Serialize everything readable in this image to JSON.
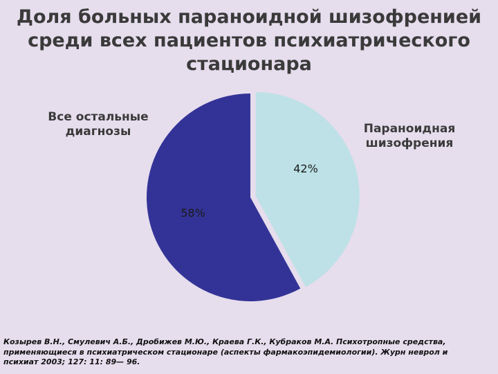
{
  "title_lines": [
    "Доля больных параноидной шизофренией",
    "среди всех пациентов психиатрического",
    "стационара"
  ],
  "chart_data": {
    "type": "pie",
    "title": "Доля больных параноидной шизофренией среди всех пациентов психиатрического стационара",
    "slices": [
      {
        "label_lines": [
          "Параноидная",
          "шизофрения"
        ],
        "value": 42,
        "value_label": "42%",
        "color": "#bde1e6",
        "exploded": true
      },
      {
        "label_lines": [
          "Все остальные",
          "диагнозы"
        ],
        "value": 58,
        "value_label": "58%",
        "color": "#333397",
        "exploded": false
      }
    ]
  },
  "source_lines": [
    "Козырев В.Н., Смулевич А.Б., Дробижев М.Ю., Краева Г.К., Кубраков М.А. Психотропные средства,",
    "применяющиеся в психиатрическом стационаре (аспекты фармакоэпидемиологии). Журн неврол и",
    "психиат 2003; 127: 11: 89— 96."
  ]
}
